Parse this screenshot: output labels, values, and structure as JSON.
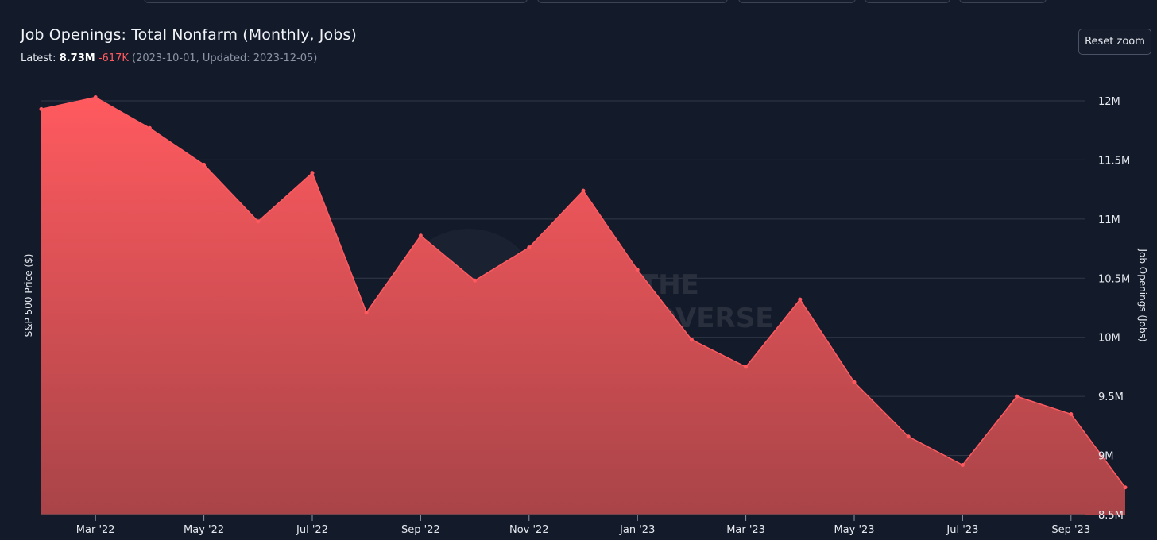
{
  "header": {
    "title": "Job Openings: Total Nonfarm (Monthly, Jobs)",
    "latest_label": "Latest:",
    "latest_value": "8.73M",
    "latest_change": "-617K",
    "latest_meta": "(2023-10-01, Updated: 2023-12-05)",
    "reset_zoom_label": "Reset zoom"
  },
  "watermark": {
    "line1": "INTO THE",
    "line2": "CRYPTOVERSE"
  },
  "colors": {
    "background": "#131a2a",
    "series": "#ff5a5f",
    "area_top": "#ff5a5f",
    "area_bottom": "#a84448",
    "grid": "#323a4a"
  },
  "chart_data": {
    "type": "area",
    "title": "Job Openings: Total Nonfarm (Monthly, Jobs)",
    "xlabel": "",
    "ylabel_left": "S&P 500 Price ($)",
    "ylabel_right": "Job Openings (Jobs)",
    "ylim": [
      8500000,
      12000000
    ],
    "y_ticks": [
      {
        "value": 12000000,
        "label": "12M"
      },
      {
        "value": 11500000,
        "label": "11.5M"
      },
      {
        "value": 11000000,
        "label": "11M"
      },
      {
        "value": 10500000,
        "label": "10.5M"
      },
      {
        "value": 10000000,
        "label": "10M"
      },
      {
        "value": 9500000,
        "label": "9.5M"
      },
      {
        "value": 9000000,
        "label": "9M"
      },
      {
        "value": 8500000,
        "label": "8.5M"
      }
    ],
    "x_ticks": [
      "Mar '22",
      "May '22",
      "Jul '22",
      "Sep '22",
      "Nov '22",
      "Jan '23",
      "Mar '23",
      "May '23",
      "Jul '23",
      "Sep '23"
    ],
    "grid": true,
    "series": [
      {
        "name": "Job Openings: Total Nonfarm",
        "x": [
          "2022-02",
          "2022-03",
          "2022-04",
          "2022-05",
          "2022-06",
          "2022-07",
          "2022-08",
          "2022-09",
          "2022-10",
          "2022-11",
          "2022-12",
          "2023-01",
          "2023-02",
          "2023-03",
          "2023-04",
          "2023-05",
          "2023-06",
          "2023-07",
          "2023-08",
          "2023-09",
          "2023-10"
        ],
        "values": [
          11930000,
          12030000,
          11770000,
          11460000,
          10980000,
          11390000,
          10210000,
          10860000,
          10480000,
          10760000,
          11240000,
          10570000,
          9980000,
          9750000,
          10320000,
          9620000,
          9160000,
          8920000,
          9500000,
          9350000,
          8730000
        ]
      }
    ]
  }
}
